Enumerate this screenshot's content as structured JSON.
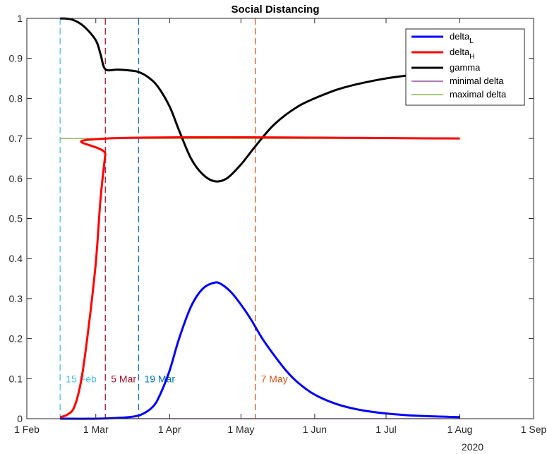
{
  "chart_data": {
    "type": "line",
    "title": "Social Distancing",
    "xlabel": "",
    "ylabel": "",
    "x_axis": {
      "type": "date",
      "ticks": [
        "2020-02-01",
        "2020-03-01",
        "2020-04-01",
        "2020-05-01",
        "2020-06-01",
        "2020-07-01",
        "2020-08-01",
        "2020-09-01"
      ],
      "tick_labels": [
        "1 Feb",
        "1 Mar",
        "1 Apr",
        "1 May",
        "1 Jun",
        "1 Jul",
        "1 Aug",
        "1 Sep"
      ],
      "year_label": "2020",
      "range": [
        "2020-02-01",
        "2020-09-01"
      ]
    },
    "y_axis": {
      "range": [
        0,
        1
      ],
      "ticks": [
        0,
        0.1,
        0.2,
        0.3,
        0.4,
        0.5,
        0.6,
        0.7,
        0.8,
        0.9,
        1
      ],
      "tick_labels": [
        "0",
        "0.1",
        "0.2",
        "0.3",
        "0.4",
        "0.5",
        "0.6",
        "0.7",
        "0.8",
        "0.9",
        "1"
      ]
    },
    "grid": false,
    "legend_position": "top-right",
    "series": [
      {
        "name": "delta",
        "subscript": "L",
        "color": "#0000ff",
        "width": "thick",
        "points": [
          [
            "2020-02-15",
            0
          ],
          [
            "2020-03-01",
            0
          ],
          [
            "2020-03-10",
            0.002
          ],
          [
            "2020-03-15",
            0.004
          ],
          [
            "2020-03-20",
            0.01
          ],
          [
            "2020-03-25",
            0.03
          ],
          [
            "2020-03-28",
            0.06
          ],
          [
            "2020-04-01",
            0.12
          ],
          [
            "2020-04-05",
            0.2
          ],
          [
            "2020-04-10",
            0.28
          ],
          [
            "2020-04-15",
            0.325
          ],
          [
            "2020-04-20",
            0.34
          ],
          [
            "2020-04-23",
            0.335
          ],
          [
            "2020-04-27",
            0.315
          ],
          [
            "2020-05-01",
            0.285
          ],
          [
            "2020-05-05",
            0.25
          ],
          [
            "2020-05-10",
            0.2
          ],
          [
            "2020-05-15",
            0.158
          ],
          [
            "2020-05-20",
            0.12
          ],
          [
            "2020-05-25",
            0.09
          ],
          [
            "2020-06-01",
            0.06
          ],
          [
            "2020-06-10",
            0.037
          ],
          [
            "2020-06-20",
            0.022
          ],
          [
            "2020-07-01",
            0.013
          ],
          [
            "2020-07-15",
            0.007
          ],
          [
            "2020-08-01",
            0.004
          ]
        ]
      },
      {
        "name": "delta",
        "subscript": "H",
        "color": "#ff0000",
        "width": "thick",
        "points": [
          [
            "2020-02-15",
            0.004
          ],
          [
            "2020-02-18",
            0.01
          ],
          [
            "2020-02-21",
            0.03
          ],
          [
            "2020-02-24",
            0.1
          ],
          [
            "2020-02-27",
            0.23
          ],
          [
            "2020-03-01",
            0.39
          ],
          [
            "2020-03-03",
            0.55
          ],
          [
            "2020-03-05",
            0.66
          ],
          [
            "2020-03-06",
            0.7
          ],
          [
            "2020-08-01",
            0.7
          ]
        ]
      },
      {
        "name": "gamma",
        "color": "#000000",
        "width": "thick",
        "points": [
          [
            "2020-02-15",
            1.0
          ],
          [
            "2020-02-20",
            0.997
          ],
          [
            "2020-02-25",
            0.98
          ],
          [
            "2020-03-01",
            0.945
          ],
          [
            "2020-03-03",
            0.91
          ],
          [
            "2020-03-05",
            0.873
          ],
          [
            "2020-03-10",
            0.872
          ],
          [
            "2020-03-15",
            0.87
          ],
          [
            "2020-03-19",
            0.866
          ],
          [
            "2020-03-23",
            0.853
          ],
          [
            "2020-03-27",
            0.83
          ],
          [
            "2020-04-01",
            0.78
          ],
          [
            "2020-04-05",
            0.72
          ],
          [
            "2020-04-10",
            0.65
          ],
          [
            "2020-04-15",
            0.61
          ],
          [
            "2020-04-20",
            0.593
          ],
          [
            "2020-04-25",
            0.6
          ],
          [
            "2020-05-01",
            0.635
          ],
          [
            "2020-05-07",
            0.68
          ],
          [
            "2020-05-15",
            0.735
          ],
          [
            "2020-05-25",
            0.78
          ],
          [
            "2020-06-05",
            0.81
          ],
          [
            "2020-06-15",
            0.83
          ],
          [
            "2020-07-01",
            0.85
          ],
          [
            "2020-07-15",
            0.86
          ],
          [
            "2020-08-01",
            0.866
          ]
        ]
      },
      {
        "name": "minimal delta",
        "color": "#7e2f8e",
        "width": "thin",
        "points": [
          [
            "2020-02-15",
            0
          ],
          [
            "2020-08-01",
            0
          ]
        ]
      },
      {
        "name": "maximal delta",
        "color": "#77ac30",
        "width": "thin",
        "points": [
          [
            "2020-02-15",
            0.7
          ],
          [
            "2020-08-01",
            0.7
          ]
        ]
      }
    ],
    "vlines": [
      {
        "date": "2020-02-15",
        "label": "15 Feb",
        "color": "#4dbeee",
        "label_y": 0.1
      },
      {
        "date": "2020-03-05",
        "label": "5 Mar",
        "color": "#a2142f",
        "label_y": 0.1
      },
      {
        "date": "2020-03-19",
        "label": "19 Mar",
        "color": "#0072bd",
        "label_y": 0.1
      },
      {
        "date": "2020-05-07",
        "label": "7 May",
        "color": "#d95319",
        "label_y": 0.1
      }
    ]
  }
}
